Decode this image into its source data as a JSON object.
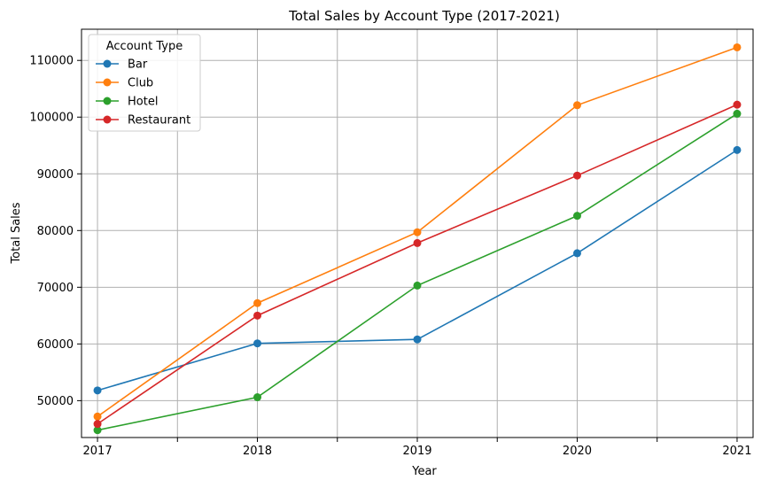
{
  "chart_data": {
    "type": "line",
    "title": "Total Sales by Account Type (2017-2021)",
    "xlabel": "Year",
    "ylabel": "Total Sales",
    "x": [
      "2017",
      "2018",
      "2019",
      "2020",
      "2021"
    ],
    "xlim": [
      2016.9,
      2021.1
    ],
    "ylim": [
      43500,
      115500
    ],
    "yticks": [
      "50000",
      "60000",
      "70000",
      "80000",
      "90000",
      "100000",
      "110000"
    ],
    "grid": true,
    "legend": {
      "title": "Account Type",
      "placement": "top-left"
    },
    "series": [
      {
        "name": "Bar",
        "color": "#1f77b4",
        "values": [
          51800,
          60100,
          60800,
          76000,
          94200
        ]
      },
      {
        "name": "Club",
        "color": "#ff7f0e",
        "values": [
          47200,
          67200,
          79700,
          102100,
          112300
        ]
      },
      {
        "name": "Hotel",
        "color": "#2ca02c",
        "values": [
          44800,
          50600,
          70300,
          82600,
          100600
        ]
      },
      {
        "name": "Restaurant",
        "color": "#d62728",
        "values": [
          45900,
          65000,
          77800,
          89700,
          102200
        ]
      }
    ]
  }
}
